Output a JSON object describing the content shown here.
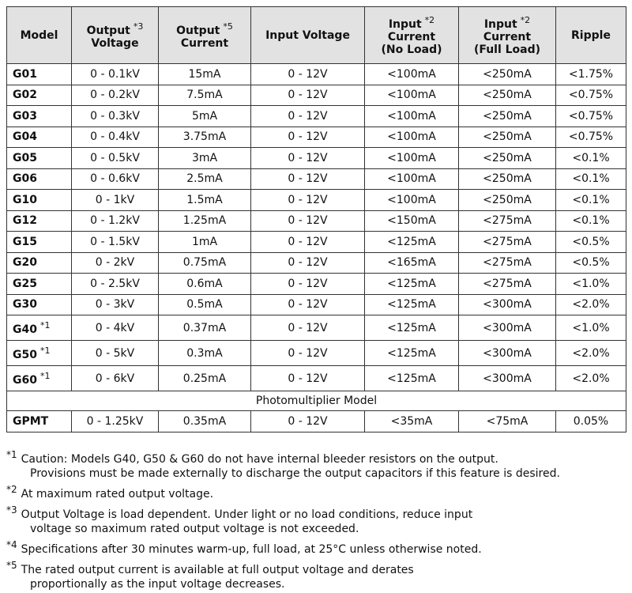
{
  "table": {
    "header": [
      {
        "lines": [
          "Model"
        ]
      },
      {
        "lines": [
          "Output",
          "Voltage"
        ],
        "note": "*3"
      },
      {
        "lines": [
          "Output",
          "Current"
        ],
        "note": "*5"
      },
      {
        "lines": [
          "Input Voltage"
        ]
      },
      {
        "lines": [
          "Input",
          "Current",
          "(No Load)"
        ],
        "note": "*2"
      },
      {
        "lines": [
          "Input",
          "Current",
          "(Full Load)"
        ],
        "note": "*2"
      },
      {
        "lines": [
          "Ripple"
        ]
      }
    ],
    "rows": [
      {
        "model": "G01",
        "cells": [
          "0 - 0.1kV",
          "15mA",
          "0 - 12V",
          "<100mA",
          "<250mA",
          "<1.75%"
        ]
      },
      {
        "model": "G02",
        "cells": [
          "0 - 0.2kV",
          "7.5mA",
          "0 - 12V",
          "<100mA",
          "<250mA",
          "<0.75%"
        ]
      },
      {
        "model": "G03",
        "cells": [
          "0 - 0.3kV",
          "5mA",
          "0 - 12V",
          "<100mA",
          "<250mA",
          "<0.75%"
        ]
      },
      {
        "model": "G04",
        "cells": [
          "0 - 0.4kV",
          "3.75mA",
          "0 - 12V",
          "<100mA",
          "<250mA",
          "<0.75%"
        ]
      },
      {
        "model": "G05",
        "cells": [
          "0 - 0.5kV",
          "3mA",
          "0 - 12V",
          "<100mA",
          "<250mA",
          "<0.1%"
        ]
      },
      {
        "model": "G06",
        "cells": [
          "0 - 0.6kV",
          "2.5mA",
          "0 - 12V",
          "<100mA",
          "<250mA",
          "<0.1%"
        ]
      },
      {
        "model": "G10",
        "cells": [
          "0 - 1kV",
          "1.5mA",
          "0 - 12V",
          "<100mA",
          "<250mA",
          "<0.1%"
        ]
      },
      {
        "model": "G12",
        "cells": [
          "0 - 1.2kV",
          "1.25mA",
          "0 - 12V",
          "<150mA",
          "<275mA",
          "<0.1%"
        ]
      },
      {
        "model": "G15",
        "cells": [
          "0 - 1.5kV",
          "1mA",
          "0 - 12V",
          "<125mA",
          "<275mA",
          "<0.5%"
        ]
      },
      {
        "model": "G20",
        "cells": [
          "0 - 2kV",
          "0.75mA",
          "0 - 12V",
          "<165mA",
          "<275mA",
          "<0.5%"
        ]
      },
      {
        "model": "G25",
        "cells": [
          "0 - 2.5kV",
          "0.6mA",
          "0 - 12V",
          "<125mA",
          "<275mA",
          "<1.0%"
        ]
      },
      {
        "model": "G30",
        "cells": [
          "0 - 3kV",
          "0.5mA",
          "0 - 12V",
          "<125mA",
          "<300mA",
          "<2.0%"
        ]
      },
      {
        "model": "G40",
        "note": "*1",
        "cells": [
          "0 - 4kV",
          "0.37mA",
          "0 - 12V",
          "<125mA",
          "<300mA",
          "<1.0%"
        ]
      },
      {
        "model": "G50",
        "note": "*1",
        "cells": [
          "0 - 5kV",
          "0.3mA",
          "0 - 12V",
          "<125mA",
          "<300mA",
          "<2.0%"
        ]
      },
      {
        "model": "G60",
        "note": "*1",
        "cells": [
          "0 - 6kV",
          "0.25mA",
          "0 - 12V",
          "<125mA",
          "<300mA",
          "<2.0%"
        ]
      }
    ],
    "section": "Photomultiplier Model",
    "extra_rows": [
      {
        "model": "GPMT",
        "cells": [
          "0 - 1.25kV",
          "0.35mA",
          "0 - 12V",
          "<35mA",
          "<75mA",
          "0.05%"
        ]
      }
    ]
  },
  "footnotes": [
    {
      "mark": "*1",
      "lines": [
        "Caution: Models G40, G50 & G60 do not have internal bleeder resistors on the output.",
        "Provisions must be made externally to discharge the output capacitors if this feature is desired."
      ]
    },
    {
      "mark": "*2",
      "lines": [
        "At maximum rated output voltage."
      ]
    },
    {
      "mark": "*3",
      "lines": [
        "Output Voltage is load dependent. Under light or no load conditions, reduce input",
        "voltage so maximum rated output voltage is not exceeded."
      ]
    },
    {
      "mark": "*4",
      "lines": [
        "Specifications after 30 minutes warm-up, full load, at 25°C unless otherwise noted."
      ]
    },
    {
      "mark": "*5",
      "lines": [
        "The rated output current is available at full output voltage and derates",
        "proportionally as the input voltage decreases."
      ]
    }
  ]
}
